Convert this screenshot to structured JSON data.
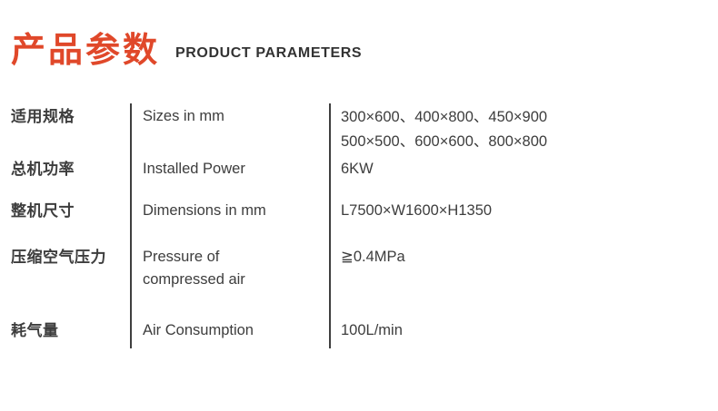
{
  "header": {
    "title_zh": "产品参数",
    "title_en": "PRODUCT PARAMETERS",
    "accent_color": "#e0482a",
    "text_color": "#333333"
  },
  "table": {
    "divider_color": "#3f3f3f",
    "rows": [
      {
        "label_zh": "适用规格",
        "label_en": "Sizes in mm",
        "value": "300×600、400×800、450×900",
        "value2": "500×500、600×600、800×800"
      },
      {
        "label_zh": "总机功率",
        "label_en": "Installed Power",
        "value": "6KW"
      },
      {
        "label_zh": "整机尺寸",
        "label_en": "Dimensions in mm",
        "value": "L7500×W1600×H1350"
      },
      {
        "label_zh": "压缩空气压力",
        "label_en": "Pressure of",
        "label_en2": "compressed air",
        "value": "≧0.4MPa"
      },
      {
        "label_zh": "耗气量",
        "label_en": "Air Consumption",
        "value": "100L/min"
      }
    ]
  }
}
